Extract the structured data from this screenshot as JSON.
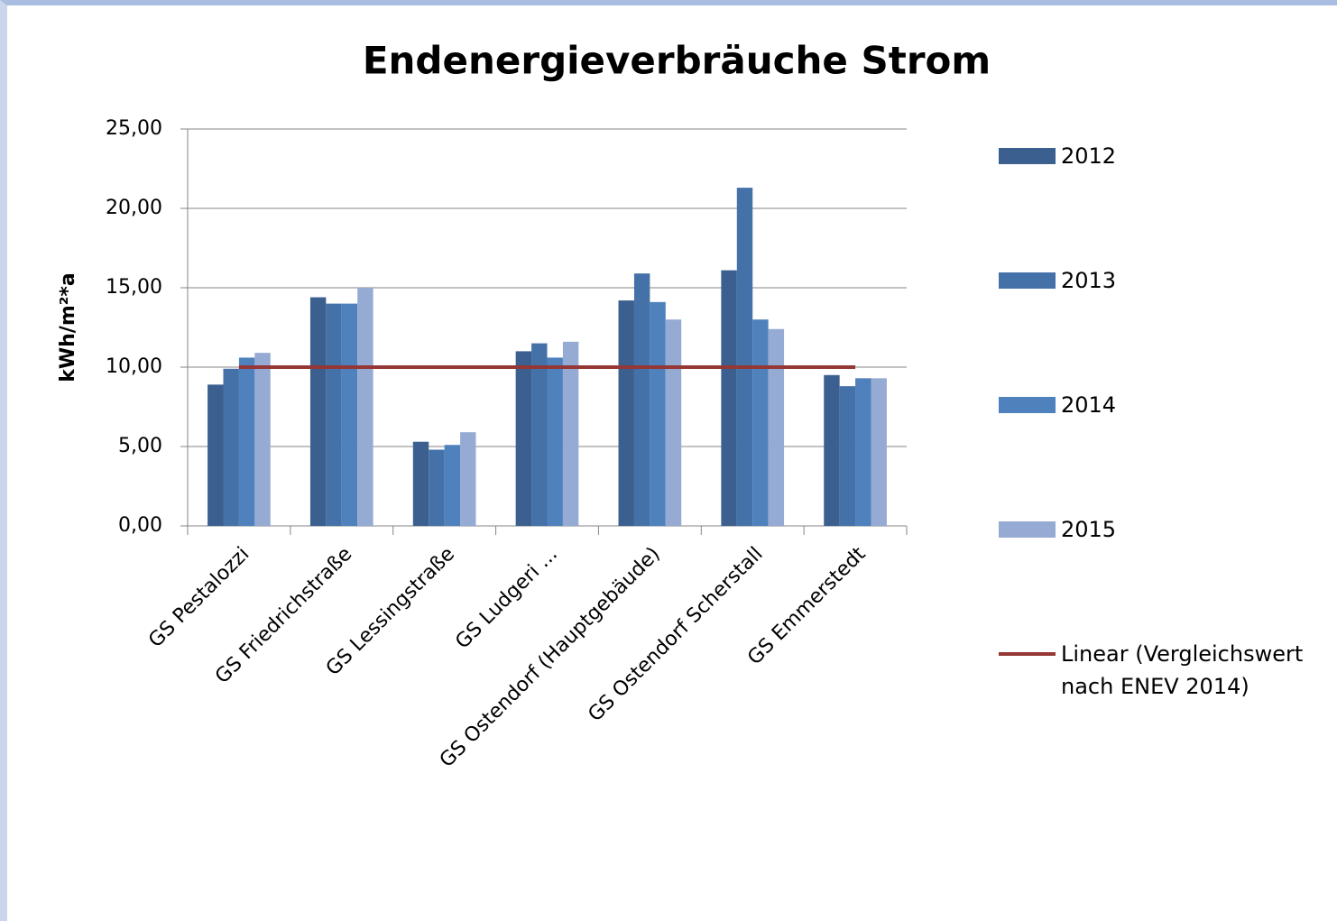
{
  "chart_data": {
    "type": "bar",
    "title": "Endenergieverbräuche Strom",
    "y_label": "kWh/m²*a",
    "categories": [
      "GS Pestalozzi",
      "GS Friedrichstraße",
      "GS Lessingstraße",
      "GS Ludgeri ...",
      "GS Ostendorf (Hauptgebäude)",
      "GS Ostendorf Scherstall",
      "GS Emmerstedt"
    ],
    "series": [
      {
        "name": "2012",
        "color": "#3b5f8f",
        "values": [
          8.9,
          14.4,
          5.3,
          11.0,
          14.2,
          16.1,
          9.5
        ]
      },
      {
        "name": "2013",
        "color": "#4471a8",
        "values": [
          9.9,
          14.0,
          4.8,
          11.5,
          15.9,
          21.3,
          8.8
        ]
      },
      {
        "name": "2014",
        "color": "#4f81bd",
        "values": [
          10.6,
          14.0,
          5.1,
          10.6,
          14.1,
          13.0,
          9.3
        ]
      },
      {
        "name": "2015",
        "color": "#95abd3",
        "values": [
          10.9,
          15.0,
          5.9,
          11.6,
          13.0,
          12.4,
          9.3
        ]
      },
      {
        "name": "Linear (Vergleichswert nach ENEV 2014)",
        "type": "line",
        "color": "#953735",
        "values": [
          10,
          10,
          10,
          10,
          10,
          10,
          10
        ]
      }
    ],
    "ylim": [
      0,
      25
    ],
    "yticks": [
      {
        "value": 0,
        "label": "0,00"
      },
      {
        "value": 5,
        "label": "5,00"
      },
      {
        "value": 10,
        "label": "10,00"
      },
      {
        "value": 15,
        "label": "15,00"
      },
      {
        "value": 20,
        "label": "20,00"
      },
      {
        "value": 25,
        "label": "25,00"
      }
    ],
    "grid": true,
    "legend": "right"
  }
}
